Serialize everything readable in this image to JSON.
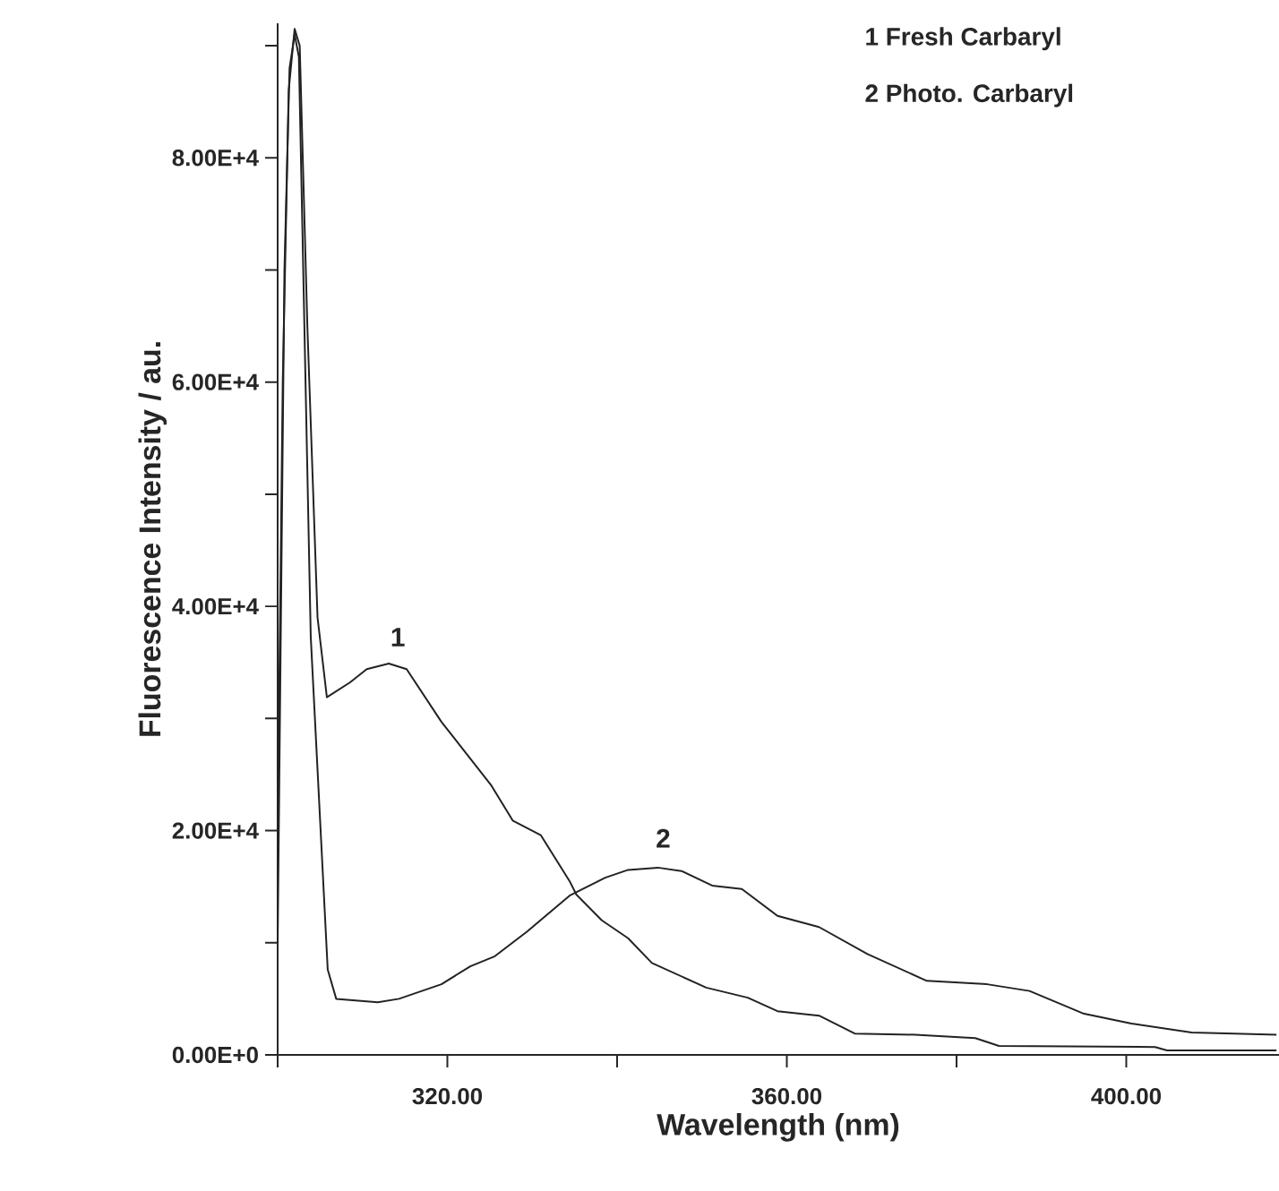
{
  "chart_data": {
    "type": "line",
    "xlabel": "Wavelength (nm)",
    "ylabel": "Fluorescence Intensity / au.",
    "xlim": [
      300,
      418
    ],
    "ylim": [
      0,
      92000
    ],
    "xticks": [
      {
        "value": 300,
        "label": null
      },
      {
        "value": 320,
        "label": "320.00"
      },
      {
        "value": 340,
        "label": null
      },
      {
        "value": 360,
        "label": "360.00"
      },
      {
        "value": 380,
        "label": null
      },
      {
        "value": 400,
        "label": "400.00"
      }
    ],
    "yticks": [
      {
        "value": 0,
        "label": "0.00E+0"
      },
      {
        "value": 10000,
        "label": null
      },
      {
        "value": 20000,
        "label": "2.00E+4"
      },
      {
        "value": 30000,
        "label": null
      },
      {
        "value": 40000,
        "label": "4.00E+4"
      },
      {
        "value": 50000,
        "label": null
      },
      {
        "value": 60000,
        "label": "6.00E+4"
      },
      {
        "value": 70000,
        "label": null
      },
      {
        "value": 80000,
        "label": "8.00E+4"
      },
      {
        "value": 90000,
        "label": null
      }
    ],
    "grid": false,
    "marker": "none",
    "line_style": "solid",
    "annotations": [
      "1",
      "2",
      "1  Fresh Carbaryl",
      "2  Photo. Carbaryl"
    ],
    "series": [
      {
        "color": "#222222",
        "x": [
          300.0,
          300.6,
          301.3,
          302.0,
          302.6,
          303.5,
          304.7,
          305.8,
          308.5,
          310.5,
          313.1,
          315.2,
          319.3,
          325.2,
          327.7,
          331.0,
          334.4,
          335.2,
          338.2,
          341.3,
          344.1,
          350.5,
          355.4,
          358.9,
          363.8,
          368.0,
          375.1,
          382.2,
          385.0,
          403.4,
          404.8,
          417.7
        ],
        "values": [
          20000,
          60000,
          86000,
          91500,
          90000,
          65000,
          39000,
          31900,
          33200,
          34400,
          34900,
          34400,
          29700,
          24000,
          20900,
          19600,
          15500,
          14300,
          12000,
          10400,
          8200,
          6000,
          5100,
          3900,
          3500,
          1900,
          1800,
          1500,
          800,
          700,
          400,
          400
        ]
      },
      {
        "color": "#222222",
        "x": [
          300.0,
          300.8,
          301.4,
          302.0,
          302.5,
          303.9,
          305.9,
          306.9,
          311.8,
          314.3,
          319.3,
          322.7,
          325.6,
          329.4,
          334.4,
          338.6,
          341.3,
          344.8,
          347.6,
          351.2,
          354.7,
          358.9,
          363.8,
          369.5,
          376.5,
          383.6,
          388.6,
          394.9,
          400.6,
          407.7,
          417.7
        ],
        "values": [
          10000,
          70000,
          88000,
          91000,
          89000,
          37300,
          7600,
          5000,
          4700,
          5000,
          6300,
          7900,
          8800,
          11000,
          14200,
          15800,
          16500,
          16700,
          16400,
          15100,
          14800,
          12400,
          11400,
          9000,
          6600,
          6300,
          5700,
          3700,
          2800,
          2000,
          1800
        ]
      }
    ]
  }
}
